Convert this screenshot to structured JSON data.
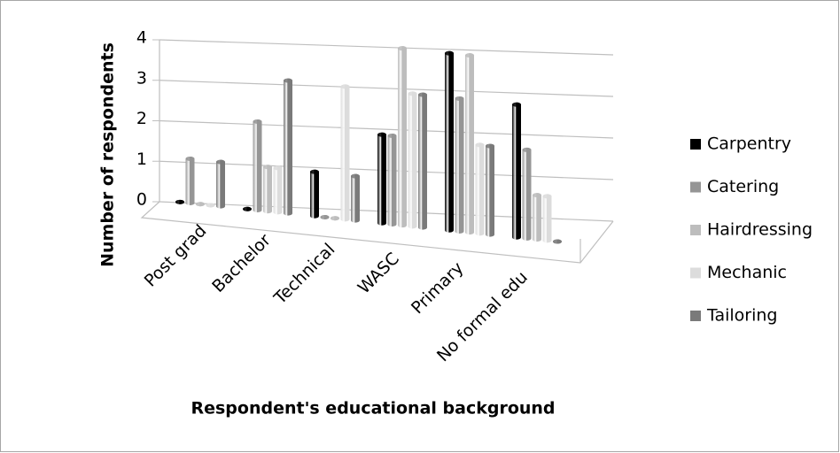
{
  "chart_data": {
    "type": "bar3d",
    "xlabel": "Respondent's educational background",
    "ylabel": "Number of respondents",
    "categories": [
      "Post grad",
      "Bachelor",
      "Technical",
      "WASC",
      "Primary",
      "No formal edu"
    ],
    "series": [
      {
        "name": "Carpentry",
        "color": "#000000",
        "values": [
          0,
          0,
          1,
          2,
          4,
          3
        ]
      },
      {
        "name": "Catering",
        "color": "#959595",
        "values": [
          1,
          2,
          0,
          2,
          3,
          2
        ]
      },
      {
        "name": "Hairdressing",
        "color": "#bdbdbd",
        "values": [
          0,
          1,
          0,
          4,
          4,
          1
        ]
      },
      {
        "name": "Mechanic",
        "color": "#dcdcdc",
        "values": [
          0,
          1,
          3,
          3,
          2,
          1
        ]
      },
      {
        "name": "Tailoring",
        "color": "#7a7a7a",
        "values": [
          1,
          3,
          1,
          3,
          2,
          0
        ]
      }
    ],
    "ylim": [
      0,
      4
    ],
    "yticks": [
      0,
      1,
      2,
      3,
      4
    ],
    "grid": true,
    "legend": "right"
  }
}
